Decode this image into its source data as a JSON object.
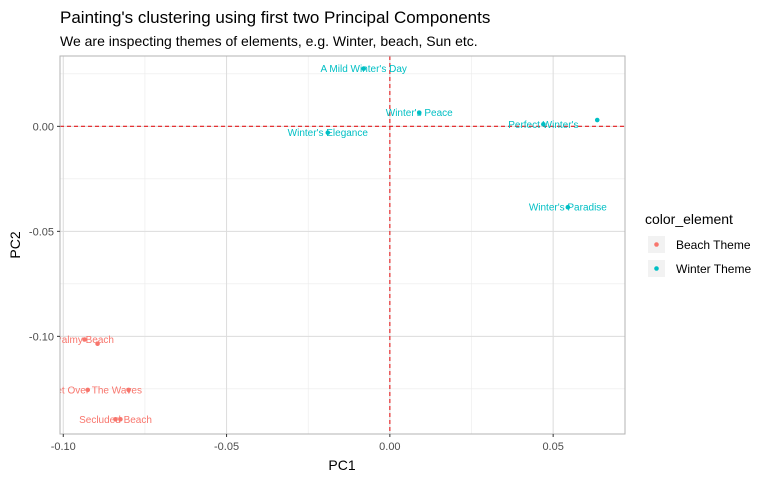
{
  "chart_data": {
    "type": "scatter",
    "title": "Painting's clustering using first two Principal Components",
    "subtitle": "We are inspecting themes of elements, e.g. Winter, beach, Sun etc.",
    "xlabel": "PC1",
    "ylabel": "PC2",
    "xlim": [
      -0.101,
      0.072
    ],
    "ylim": [
      -0.1465,
      0.0335
    ],
    "xticks": [
      -0.1,
      -0.05,
      0.0,
      0.05
    ],
    "xtick_labels": [
      "-0.10",
      "-0.05",
      "0.00",
      "0.05"
    ],
    "yticks": [
      0.0,
      -0.05,
      -0.1
    ],
    "ytick_labels": [
      "0.00",
      "-0.05",
      "-0.10"
    ],
    "reference_lines": {
      "x": 0,
      "y": 0,
      "color": "#e41a1c",
      "style": "dashed"
    },
    "grid": true,
    "legend": {
      "title": "color_element",
      "position": "right",
      "entries": [
        {
          "name": "Beach Theme",
          "color": "#F8766D"
        },
        {
          "name": "Winter Theme",
          "color": "#00BFC4"
        }
      ]
    },
    "series": [
      {
        "name": "Beach Theme",
        "color": "#F8766D",
        "points": [
          {
            "x": -0.0935,
            "y": -0.1015,
            "label": "Palmy Beach"
          },
          {
            "x": -0.0895,
            "y": -0.1035,
            "label": ""
          },
          {
            "x": -0.0925,
            "y": -0.1255,
            "label": "Sunset Over The Waves"
          },
          {
            "x": -0.08,
            "y": -0.1255,
            "label": ""
          },
          {
            "x": -0.084,
            "y": -0.1395,
            "label": "Secluded Beach"
          },
          {
            "x": -0.0825,
            "y": -0.1395,
            "label": ""
          }
        ]
      },
      {
        "name": "Winter Theme",
        "color": "#00BFC4",
        "points": [
          {
            "x": -0.008,
            "y": 0.0275,
            "label": "A Mild Winter's Day"
          },
          {
            "x": 0.009,
            "y": 0.0065,
            "label": "Winter's Peace"
          },
          {
            "x": -0.019,
            "y": -0.003,
            "label": "Winter's Elegance"
          },
          {
            "x": 0.047,
            "y": 0.001,
            "label": "Perfect Winter's"
          },
          {
            "x": 0.0635,
            "y": 0.003,
            "label": ""
          },
          {
            "x": 0.0545,
            "y": -0.0385,
            "label": "Winter's Paradise"
          }
        ]
      }
    ]
  }
}
